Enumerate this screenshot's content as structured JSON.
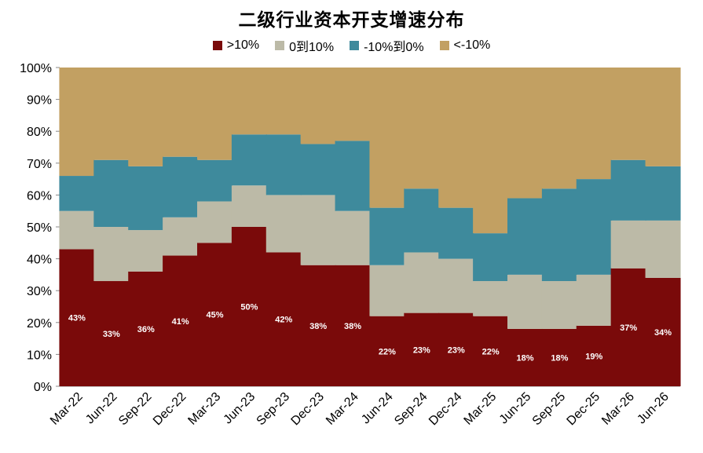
{
  "chart_data": {
    "type": "bar",
    "stacked": true,
    "title": "二级行业资本开支增速分布",
    "categories": [
      "Mar-22",
      "Jun-22",
      "Sep-22",
      "Dec-22",
      "Mar-23",
      "Jun-23",
      "Sep-23",
      "Dec-23",
      "Mar-24",
      "Jun-24",
      "Sep-24",
      "Dec-24",
      "Mar-25",
      "Jun-25",
      "Sep-25",
      "Dec-25",
      "Mar-26",
      "Jun-26"
    ],
    "ylim": [
      0,
      100
    ],
    "yticks": [
      "0%",
      "10%",
      "20%",
      "30%",
      "40%",
      "50%",
      "60%",
      "70%",
      "80%",
      "90%",
      "100%"
    ],
    "grid": false,
    "legend_position": "top",
    "series": [
      {
        "name": ">10%",
        "color": "#7a0a0a",
        "values": [
          43,
          33,
          36,
          41,
          45,
          50,
          42,
          38,
          38,
          22,
          23,
          23,
          22,
          18,
          18,
          19,
          37,
          34
        ]
      },
      {
        "name": "0到10%",
        "color": "#bcbaa7",
        "values": [
          12,
          17,
          13,
          12,
          13,
          13,
          18,
          22,
          17,
          16,
          19,
          17,
          11,
          17,
          15,
          16,
          15,
          18
        ]
      },
      {
        "name": "-10%到0%",
        "color": "#3e8a9c",
        "values": [
          11,
          21,
          20,
          19,
          13,
          16,
          19,
          16,
          22,
          18,
          20,
          16,
          15,
          24,
          29,
          30,
          19,
          17
        ]
      },
      {
        "name": "<-10%",
        "color": "#c2a062",
        "values": [
          34,
          29,
          31,
          28,
          29,
          21,
          21,
          24,
          23,
          44,
          38,
          44,
          52,
          41,
          38,
          35,
          29,
          31
        ]
      }
    ],
    "data_labels": [
      "43%",
      "33%",
      "36%",
      "41%",
      "45%",
      "50%",
      "42%",
      "38%",
      "38%",
      "22%",
      "23%",
      "23%",
      "22%",
      "18%",
      "18%",
      "19%",
      "37%",
      "34%"
    ]
  }
}
